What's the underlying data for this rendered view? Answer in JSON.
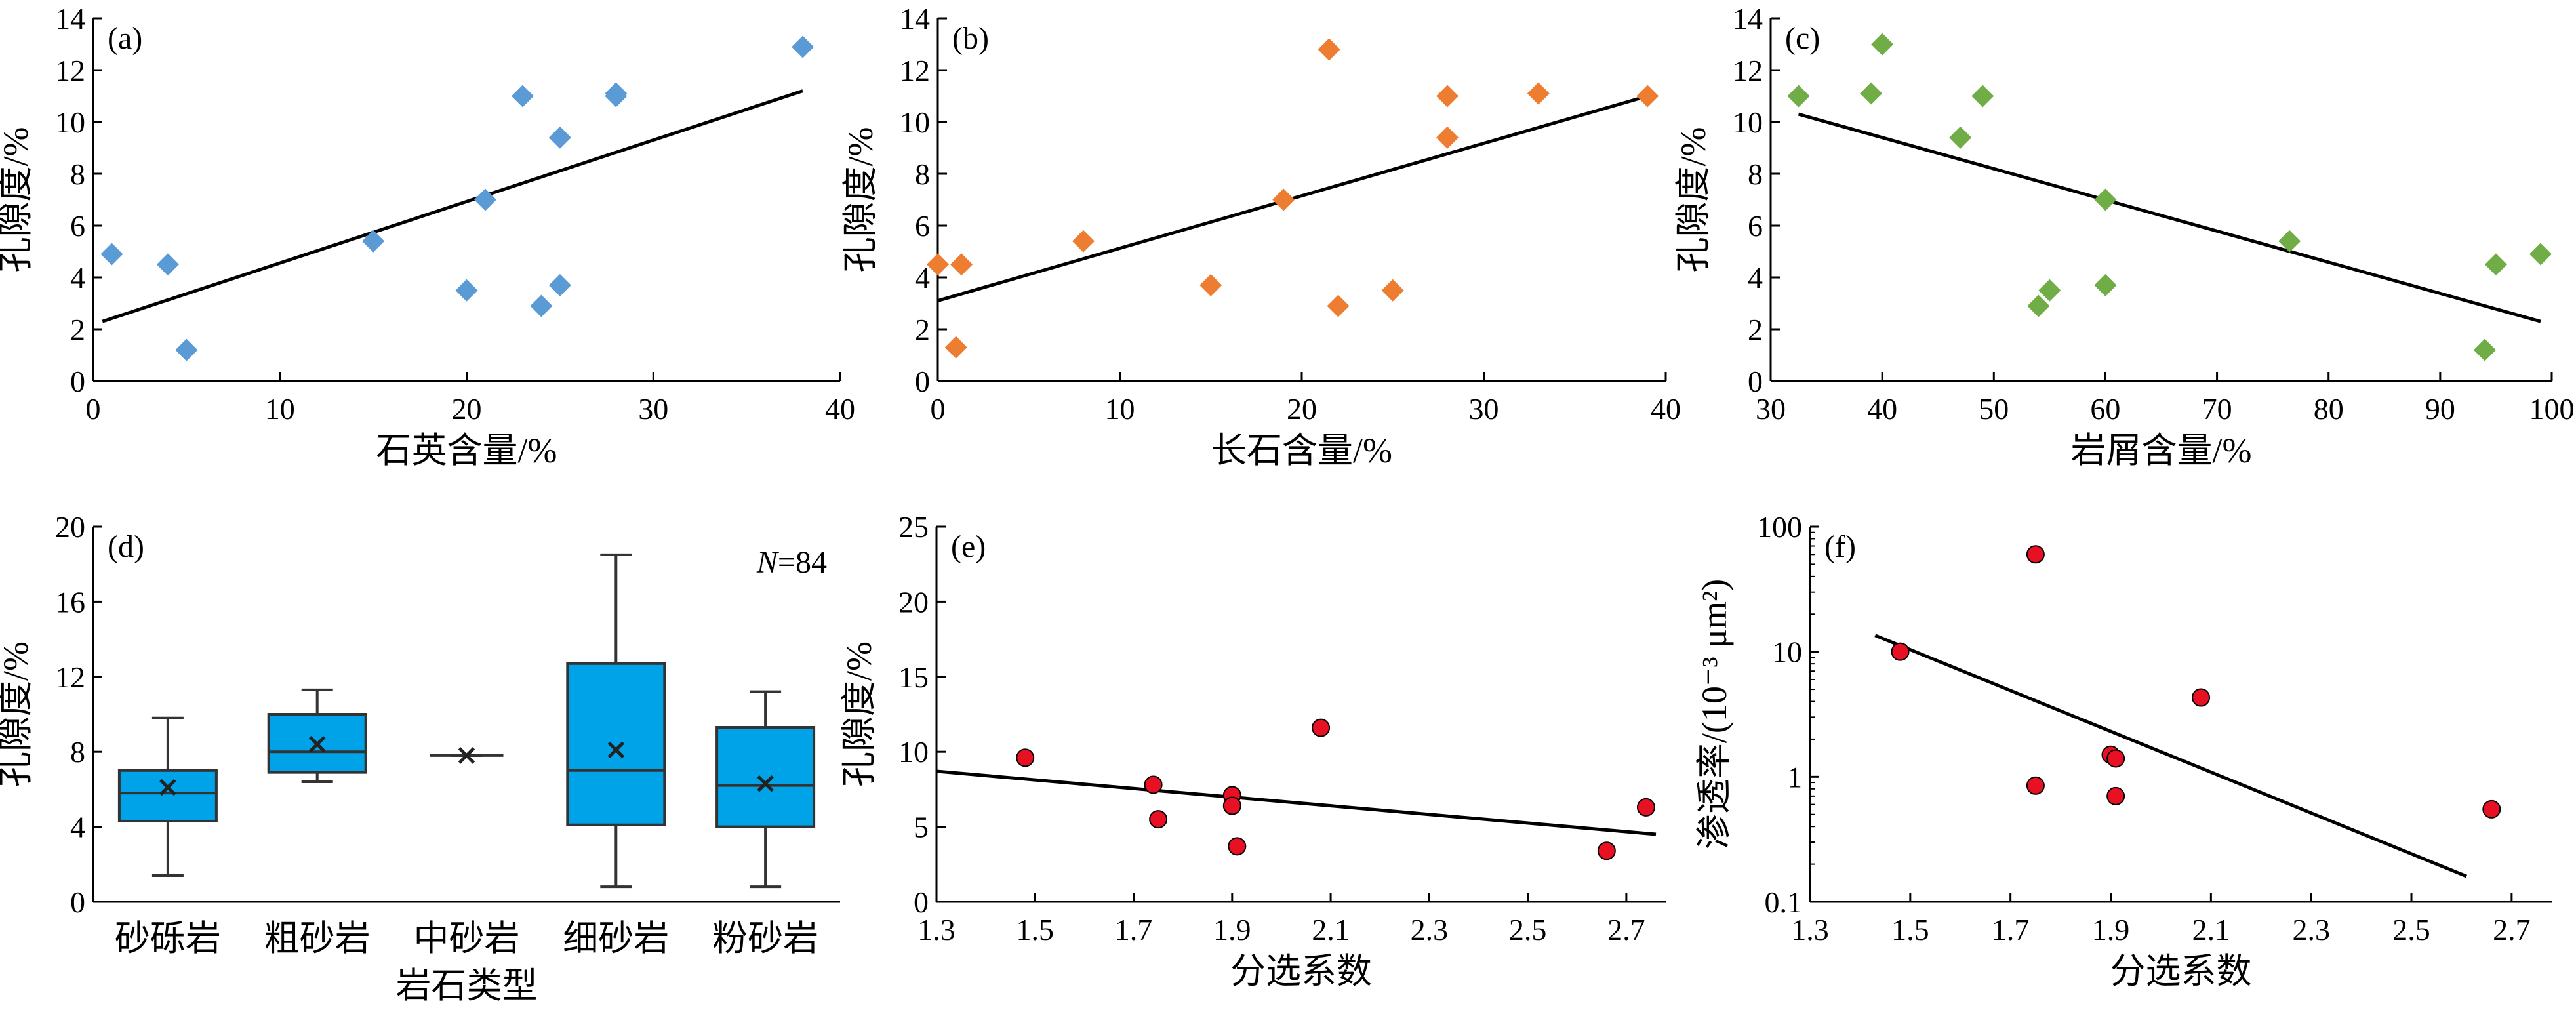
{
  "chart_data": [
    {
      "id": "a",
      "type": "scatter",
      "panel_label": "(a)",
      "xlabel": "石英含量/%",
      "ylabel": "孔隙度/%",
      "xlim": [
        0,
        40
      ],
      "ylim": [
        0,
        14
      ],
      "xticks": [
        0,
        10,
        20,
        30,
        40
      ],
      "yticks": [
        0,
        2,
        4,
        6,
        8,
        10,
        12,
        14
      ],
      "marker": "diamond",
      "color": "#5b9bd5",
      "x": [
        1,
        4,
        5,
        15,
        20,
        21,
        23,
        24,
        25,
        25,
        28,
        28,
        38
      ],
      "y": [
        4.9,
        4.5,
        1.2,
        5.4,
        3.5,
        7.0,
        11.0,
        2.9,
        9.4,
        3.7,
        11.0,
        11.1,
        12.9
      ],
      "fit_line": [
        [
          0.5,
          2.3
        ],
        [
          38,
          11.2
        ]
      ]
    },
    {
      "id": "b",
      "type": "scatter",
      "panel_label": "(b)",
      "xlabel": "长石含量/%",
      "ylabel": "孔隙度/%",
      "xlim": [
        0,
        40
      ],
      "ylim": [
        0,
        14
      ],
      "xticks": [
        0,
        10,
        20,
        30,
        40
      ],
      "yticks": [
        0,
        2,
        4,
        6,
        8,
        10,
        12,
        14
      ],
      "marker": "diamond",
      "color": "#ed7d31",
      "x": [
        0,
        1,
        1.3,
        8,
        15,
        19,
        21.5,
        22,
        25,
        28,
        28,
        33,
        39
      ],
      "y": [
        4.5,
        1.3,
        4.5,
        5.4,
        3.7,
        7.0,
        12.8,
        2.9,
        3.5,
        11.0,
        9.4,
        11.1,
        11.0
      ],
      "fit_line": [
        [
          0,
          3.1
        ],
        [
          39,
          11.0
        ]
      ]
    },
    {
      "id": "c",
      "type": "scatter",
      "panel_label": "(c)",
      "xlabel": "岩屑含量/%",
      "ylabel": "孔隙度/%",
      "xlim": [
        30,
        100
      ],
      "ylim": [
        0,
        14
      ],
      "xticks": [
        30,
        40,
        50,
        60,
        70,
        80,
        90,
        100
      ],
      "yticks": [
        0,
        2,
        4,
        6,
        8,
        10,
        12,
        14
      ],
      "marker": "diamond",
      "color": "#70ad47",
      "x": [
        32.5,
        39,
        40,
        47,
        49,
        54,
        55,
        60,
        60,
        76.5,
        94,
        95,
        99
      ],
      "y": [
        11.0,
        11.1,
        13.0,
        9.4,
        11.0,
        2.9,
        3.5,
        7.0,
        3.7,
        5.4,
        1.2,
        4.5,
        4.9
      ],
      "fit_line": [
        [
          32.5,
          10.3
        ],
        [
          99,
          2.3
        ]
      ]
    },
    {
      "id": "d",
      "type": "box",
      "panel_label": "(d)",
      "annotation_n_label": "N",
      "annotation_n_value": "=84",
      "xlabel": "岩石类型",
      "ylabel": "孔隙度/%",
      "ylim": [
        0,
        20
      ],
      "yticks": [
        0,
        4,
        8,
        12,
        16,
        20
      ],
      "color": "#00a2e8",
      "categories": [
        "砂砾岩",
        "粗砂岩",
        "中砂岩",
        "细砂岩",
        "粉砂岩"
      ],
      "boxes": [
        {
          "min": 1.4,
          "q1": 4.3,
          "median": 5.8,
          "q3": 7.0,
          "max": 9.8,
          "mean": 6.1
        },
        {
          "min": 6.4,
          "q1": 6.9,
          "median": 8.0,
          "q3": 10.0,
          "max": 11.3,
          "mean": 8.4
        },
        {
          "min": 7.8,
          "q1": 7.8,
          "median": 7.8,
          "q3": 7.8,
          "max": 7.8,
          "mean": 7.8
        },
        {
          "min": 0.8,
          "q1": 4.1,
          "median": 7.0,
          "q3": 12.7,
          "max": 18.5,
          "mean": 8.1
        },
        {
          "min": 0.8,
          "q1": 4.0,
          "median": 6.2,
          "q3": 9.3,
          "max": 11.2,
          "mean": 6.3
        }
      ]
    },
    {
      "id": "e",
      "type": "scatter",
      "panel_label": "(e)",
      "xlabel": "分选系数",
      "ylabel": "孔隙度/%",
      "xlim": [
        1.3,
        2.78
      ],
      "ylim": [
        0,
        25
      ],
      "xticks": [
        1.3,
        1.5,
        1.7,
        1.9,
        2.1,
        2.3,
        2.5,
        2.7
      ],
      "yticks": [
        0,
        5,
        10,
        15,
        20,
        25
      ],
      "marker": "circle",
      "color": "#e81123",
      "x": [
        1.48,
        1.74,
        1.75,
        1.9,
        1.9,
        1.91,
        2.08,
        2.66,
        2.74
      ],
      "y": [
        9.6,
        7.8,
        5.5,
        7.1,
        6.4,
        3.7,
        11.6,
        3.4,
        6.3
      ],
      "fit_line": [
        [
          1.3,
          8.7
        ],
        [
          2.76,
          4.5
        ]
      ]
    },
    {
      "id": "f",
      "type": "scatter",
      "panel_label": "(f)",
      "xlabel": "分选系数",
      "ylabel": "渗透率/(10⁻³ μm²)",
      "xlim": [
        1.3,
        2.78
      ],
      "ylim": [
        0.1,
        100
      ],
      "yscale": "log",
      "xticks": [
        1.3,
        1.5,
        1.7,
        1.9,
        2.1,
        2.3,
        2.5,
        2.7
      ],
      "yticks": [
        0.1,
        1,
        10,
        100
      ],
      "ytick_labels": [
        "0.1",
        "1",
        "10",
        "100"
      ],
      "marker": "circle",
      "color": "#e81123",
      "x": [
        1.48,
        1.75,
        1.75,
        1.9,
        1.91,
        1.91,
        2.08,
        2.66
      ],
      "y": [
        10,
        60,
        0.85,
        1.5,
        1.4,
        0.7,
        4.3,
        0.55
      ],
      "fit_line": [
        [
          1.43,
          13.5
        ],
        [
          2.61,
          0.16
        ]
      ]
    }
  ]
}
